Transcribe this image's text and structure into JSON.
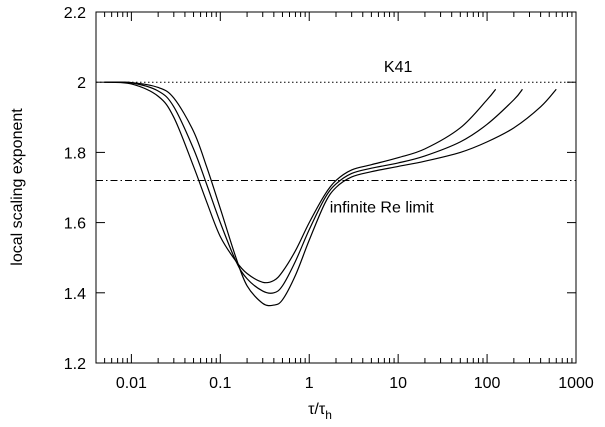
{
  "chart_data": {
    "type": "line",
    "xscale": "log",
    "xlim": [
      0.004,
      1000
    ],
    "ylim": [
      1.2,
      2.2
    ],
    "x_ticks": [
      0.01,
      0.1,
      1,
      10,
      100,
      1000
    ],
    "x_tick_labels": [
      "0.01",
      "0.1",
      "1",
      "10",
      "100",
      "1000"
    ],
    "y_ticks": [
      1.2,
      1.4,
      1.6,
      1.8,
      2.0,
      2.2
    ],
    "y_tick_labels": [
      "1.2",
      "1.4",
      "1.6",
      "1.8",
      "2",
      "2.2"
    ],
    "xlabel_main": "τ/τ",
    "xlabel_sub": "h",
    "ylabel": "local scaling exponent",
    "reference_lines": [
      {
        "label": "K41",
        "y": 2.0,
        "style": "dotted"
      },
      {
        "label": "infinite Re limit",
        "y": 1.72,
        "style": "dash-dot"
      }
    ],
    "series": [
      {
        "x": [
          0.005,
          0.01,
          0.02,
          0.03,
          0.05,
          0.07,
          0.1,
          0.15,
          0.2,
          0.3,
          0.4,
          0.5,
          0.7,
          1,
          1.5,
          2,
          3,
          5,
          10,
          20,
          50,
          100,
          125
        ],
        "values": [
          2.0,
          1.995,
          1.96,
          1.9,
          1.76,
          1.66,
          1.56,
          1.49,
          1.455,
          1.43,
          1.435,
          1.46,
          1.52,
          1.6,
          1.68,
          1.72,
          1.75,
          1.765,
          1.785,
          1.81,
          1.87,
          1.95,
          1.98
        ]
      },
      {
        "x": [
          0.005,
          0.01,
          0.02,
          0.03,
          0.05,
          0.07,
          0.1,
          0.15,
          0.2,
          0.3,
          0.4,
          0.5,
          0.7,
          1,
          1.5,
          2,
          3,
          5,
          10,
          20,
          50,
          100,
          200,
          250
        ],
        "values": [
          2.0,
          1.998,
          1.975,
          1.93,
          1.81,
          1.71,
          1.6,
          1.49,
          1.44,
          1.405,
          1.4,
          1.42,
          1.49,
          1.58,
          1.67,
          1.71,
          1.74,
          1.755,
          1.77,
          1.79,
          1.83,
          1.88,
          1.95,
          1.98
        ]
      },
      {
        "x": [
          0.005,
          0.01,
          0.02,
          0.03,
          0.05,
          0.07,
          0.1,
          0.15,
          0.2,
          0.3,
          0.4,
          0.5,
          0.7,
          1,
          1.5,
          2,
          3,
          5,
          10,
          20,
          50,
          100,
          200,
          400,
          600
        ],
        "values": [
          2.0,
          1.999,
          1.985,
          1.955,
          1.86,
          1.76,
          1.64,
          1.5,
          1.42,
          1.37,
          1.365,
          1.38,
          1.45,
          1.55,
          1.655,
          1.7,
          1.73,
          1.745,
          1.76,
          1.775,
          1.8,
          1.83,
          1.87,
          1.93,
          1.98
        ]
      }
    ]
  }
}
